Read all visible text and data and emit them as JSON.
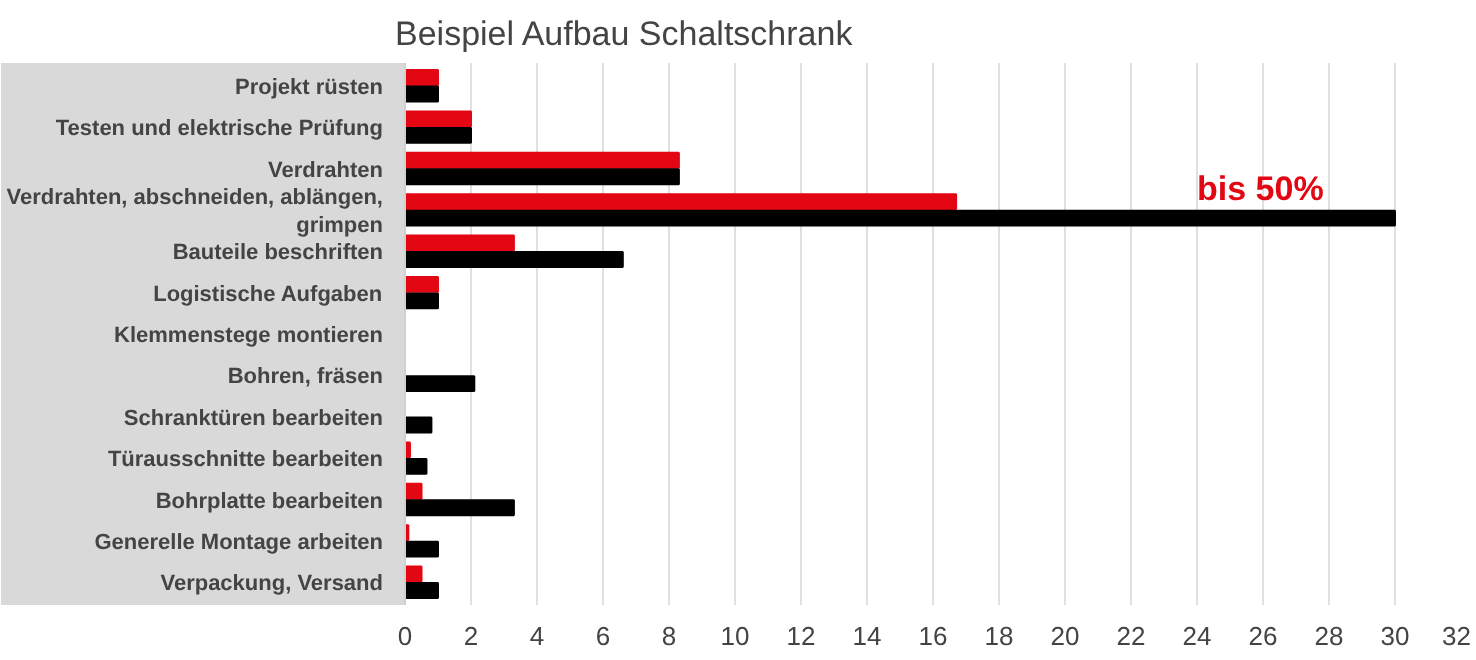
{
  "chart_data": {
    "type": "bar",
    "orientation": "horizontal",
    "title": "Beispiel Aufbau Schaltschrank",
    "categories": [
      "Projekt rüsten",
      "Testen und elektrische Prüfung",
      "Verdrahten",
      "Verdrahten, abschneiden, ablängen, grimpen",
      "Bauteile beschriften",
      "Logistische Aufgaben",
      "Klemmenstege montieren",
      "Bohren, fräsen",
      "Schranktüren bearbeiten",
      "Türausschnitte bearbeiten",
      "Bohrplatte bearbeiten",
      "Generelle Montage arbeiten",
      "Verpackung, Versand"
    ],
    "series": [
      {
        "color": "#e30613",
        "values": [
          1,
          2,
          8.3,
          16.7,
          3.3,
          1,
          null,
          0,
          0,
          0.15,
          0.5,
          0.1,
          0.5
        ]
      },
      {
        "color": "#000000",
        "values": [
          1,
          2,
          8.3,
          30,
          6.6,
          1,
          null,
          2.1,
          0.8,
          0.65,
          3.3,
          1,
          1
        ]
      }
    ],
    "xlim": [
      0,
      32
    ],
    "xticks": [
      0,
      2,
      4,
      6,
      8,
      10,
      12,
      14,
      16,
      18,
      20,
      22,
      24,
      26,
      28,
      30,
      32
    ],
    "grid": "x",
    "annotations": [
      {
        "text": "bis 50%",
        "x": 24,
        "y": "Verdrahten, abschneiden, ablängen, grimpen"
      }
    ]
  }
}
